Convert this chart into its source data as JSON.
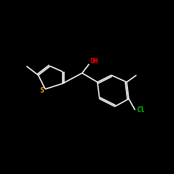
{
  "background_color": "#000000",
  "bond_color": "#ffffff",
  "oh_color": "#ff0000",
  "s_color": "#ffa500",
  "cl_color": "#00cc00",
  "line_width": 1.2,
  "figsize": [
    2.5,
    2.5
  ],
  "dpi": 100,
  "oh_label": "OH",
  "s_label": "S",
  "cl_label": "Cl",
  "oh_fontsize": 7,
  "s_fontsize": 7,
  "cl_fontsize": 7
}
